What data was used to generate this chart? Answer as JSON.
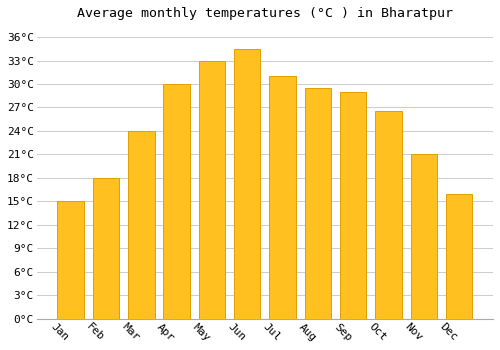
{
  "title": "Average monthly temperatures (°C ) in Bharatpur",
  "months": [
    "Jan",
    "Feb",
    "Mar",
    "Apr",
    "May",
    "Jun",
    "Jul",
    "Aug",
    "Sep",
    "Oct",
    "Nov",
    "Dec"
  ],
  "temperatures": [
    15,
    18,
    24,
    30,
    33,
    34.5,
    31,
    29.5,
    29,
    26.5,
    21,
    16
  ],
  "bar_color": "#FFC020",
  "bar_edge_color": "#E0A000",
  "background_color": "#FFFFFF",
  "grid_color": "#CCCCCC",
  "yticks": [
    0,
    3,
    6,
    9,
    12,
    15,
    18,
    21,
    24,
    27,
    30,
    33,
    36
  ],
  "ylim": [
    0,
    37.5
  ],
  "title_fontsize": 9.5,
  "tick_fontsize": 8,
  "font_family": "monospace",
  "xlabel_rotation": -45
}
